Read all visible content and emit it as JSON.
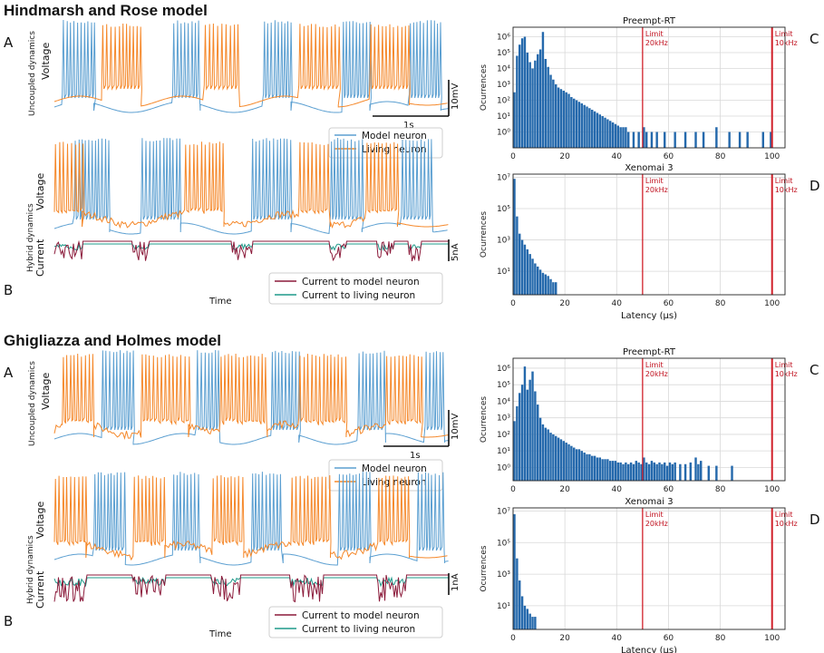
{
  "colors": {
    "model": "#5b9fd1",
    "living": "#f5882a",
    "current_model": "#8b1a3a",
    "current_living": "#1f9a8a",
    "bar": "#2569ac",
    "limit": "#d0202a",
    "grid": "#d8d8d8"
  },
  "top": {
    "title": "Hindmarsh and Rose model",
    "letters": [
      "A",
      "B"
    ],
    "uncoupled_label": "Uncoupled dynamics",
    "hybrid_label": "Hybrid dynamics",
    "voltage_label": "Voltage",
    "current_label": "Current",
    "time_label": "Time",
    "scale_v": "10mV",
    "scale_t": "1s",
    "scale_i": "5nA",
    "legend_voltage": [
      "Model neuron",
      "Living neuron"
    ],
    "legend_current": [
      "Current to model neuron",
      "Current to living neuron"
    ]
  },
  "bottom": {
    "title": "Ghigliazza and Holmes model",
    "letters": [
      "A",
      "B"
    ],
    "uncoupled_label": "Uncoupled dynamics",
    "hybrid_label": "Hybrid dynamics",
    "voltage_label": "Voltage",
    "current_label": "Current",
    "time_label": "Time",
    "scale_v": "10mV",
    "scale_t": "1s",
    "scale_i": "1nA",
    "legend_voltage": [
      "Model neuron",
      "Living neuron"
    ],
    "legend_current": [
      "Current to model neuron",
      "Current to living neuron"
    ]
  },
  "chart_data": [
    {
      "type": "bar",
      "panel": "top-C",
      "title": "Preempt-RT",
      "panel_letter": "C",
      "ylabel": "Ocurrences",
      "xlabel": "",
      "yscale": "log",
      "xlim": [
        0,
        105
      ],
      "ylim_exp": [
        -1,
        6.6
      ],
      "xticks": [
        "0",
        "20",
        "40",
        "60",
        "80",
        "100"
      ],
      "yticks": [
        "10⁰",
        "10¹",
        "10²",
        "10³",
        "10⁴",
        "10⁵",
        "10⁶"
      ],
      "limits": [
        {
          "x": 50,
          "label": [
            "Limit",
            "20kHz"
          ]
        },
        {
          "x": 100,
          "label": [
            "Limit",
            "10kHz"
          ]
        }
      ],
      "x": [
        0,
        1,
        2,
        3,
        4,
        5,
        6,
        7,
        8,
        9,
        10,
        11,
        12,
        13,
        14,
        15,
        16,
        17,
        18,
        19,
        20,
        21,
        22,
        23,
        24,
        25,
        26,
        27,
        28,
        29,
        30,
        31,
        32,
        33,
        34,
        35,
        36,
        37,
        38,
        39,
        40,
        41,
        42,
        43,
        44,
        46,
        48,
        50,
        51,
        53,
        55,
        58,
        62,
        66,
        70,
        73,
        78,
        83,
        87,
        90,
        96,
        99
      ],
      "log10_values": [
        2.5,
        4.8,
        5.5,
        5.9,
        6.0,
        5.0,
        4.4,
        4.0,
        4.5,
        4.9,
        5.2,
        6.3,
        4.6,
        4.1,
        3.6,
        3.3,
        3.0,
        2.8,
        2.7,
        2.6,
        2.5,
        2.4,
        2.2,
        2.1,
        2.0,
        1.9,
        1.8,
        1.7,
        1.6,
        1.5,
        1.4,
        1.3,
        1.2,
        1.1,
        1.0,
        0.9,
        0.8,
        0.7,
        0.6,
        0.5,
        0.4,
        0.3,
        0.3,
        0.3,
        0,
        0,
        0,
        0.3,
        0,
        0,
        0,
        0,
        0,
        0,
        0,
        0,
        0.3,
        0,
        0,
        0,
        0,
        0
      ]
    },
    {
      "type": "bar",
      "panel": "top-D",
      "title": "Xenomai 3",
      "panel_letter": "D",
      "ylabel": "Ocurrences",
      "xlabel": "Latency (µs)",
      "yscale": "log",
      "xlim": [
        0,
        105
      ],
      "ylim_exp": [
        -0.5,
        7.2
      ],
      "xticks": [
        "0",
        "20",
        "40",
        "60",
        "80",
        "100"
      ],
      "yticks": [
        "10¹",
        "10³",
        "10⁵",
        "10⁷"
      ],
      "limits": [
        {
          "x": 50,
          "label": [
            "Limit",
            "20kHz"
          ]
        },
        {
          "x": 100,
          "label": [
            "Limit",
            "10kHz"
          ]
        }
      ],
      "x": [
        0,
        1,
        2,
        3,
        4,
        5,
        6,
        7,
        8,
        9,
        10,
        11,
        12,
        13,
        14,
        15,
        16
      ],
      "log10_values": [
        6.9,
        4.5,
        3.4,
        3.0,
        2.7,
        2.4,
        2.1,
        1.8,
        1.5,
        1.3,
        1.1,
        0.9,
        0.8,
        0.7,
        0.5,
        0.3,
        0.3
      ]
    },
    {
      "type": "bar",
      "panel": "bottom-C",
      "title": "Preempt-RT",
      "panel_letter": "C",
      "ylabel": "Ocurrences",
      "xlabel": "",
      "yscale": "log",
      "xlim": [
        0,
        105
      ],
      "ylim_exp": [
        -0.8,
        6.6
      ],
      "xticks": [
        "0",
        "20",
        "40",
        "60",
        "80",
        "100"
      ],
      "yticks": [
        "10⁰",
        "10¹",
        "10²",
        "10³",
        "10⁴",
        "10⁵",
        "10⁶"
      ],
      "limits": [
        {
          "x": 50,
          "label": [
            "Limit",
            "20kHz"
          ]
        },
        {
          "x": 100,
          "label": [
            "Limit",
            "10kHz"
          ]
        }
      ],
      "x": [
        0,
        1,
        2,
        3,
        4,
        5,
        6,
        7,
        8,
        9,
        10,
        11,
        12,
        13,
        14,
        15,
        16,
        17,
        18,
        19,
        20,
        21,
        22,
        23,
        24,
        25,
        26,
        27,
        28,
        29,
        30,
        31,
        32,
        33,
        34,
        35,
        36,
        37,
        38,
        39,
        40,
        41,
        42,
        43,
        44,
        45,
        46,
        47,
        48,
        49,
        50,
        51,
        52,
        53,
        54,
        55,
        56,
        57,
        58,
        59,
        60,
        61,
        62,
        64,
        66,
        68,
        70,
        71,
        72,
        75,
        78,
        84
      ],
      "log10_values": [
        2.8,
        3.7,
        4.5,
        5.0,
        6.1,
        4.7,
        5.3,
        5.8,
        4.6,
        3.8,
        3.0,
        2.6,
        2.4,
        2.3,
        2.1,
        2.0,
        1.9,
        1.8,
        1.7,
        1.6,
        1.5,
        1.4,
        1.3,
        1.2,
        1.1,
        1.1,
        1.0,
        0.9,
        0.8,
        0.8,
        0.7,
        0.7,
        0.6,
        0.6,
        0.5,
        0.5,
        0.5,
        0.4,
        0.4,
        0.4,
        0.3,
        0.3,
        0.2,
        0.3,
        0.2,
        0.3,
        0.2,
        0.4,
        0.3,
        0.2,
        0.6,
        0.3,
        0.2,
        0.4,
        0.3,
        0.2,
        0.3,
        0.2,
        0.3,
        0.1,
        0.3,
        0.2,
        0.3,
        0.2,
        0.2,
        0.3,
        0.6,
        0.2,
        0.4,
        0.1,
        0.1,
        0.1
      ]
    },
    {
      "type": "bar",
      "panel": "bottom-D",
      "title": "Xenomai 3",
      "panel_letter": "D",
      "ylabel": "Ocurrences",
      "xlabel": "Latency (µs)",
      "yscale": "log",
      "xlim": [
        0,
        105
      ],
      "ylim_exp": [
        -0.5,
        7.2
      ],
      "xticks": [
        "0",
        "20",
        "40",
        "60",
        "80",
        "100"
      ],
      "yticks": [
        "10¹",
        "10³",
        "10⁵",
        "10⁷"
      ],
      "limits": [
        {
          "x": 50,
          "label": [
            "Limit",
            "20kHz"
          ]
        },
        {
          "x": 100,
          "label": [
            "Limit",
            "10kHz"
          ]
        }
      ],
      "x": [
        0,
        1,
        2,
        3,
        4,
        5,
        6,
        7,
        8
      ],
      "log10_values": [
        6.8,
        4.0,
        2.6,
        1.6,
        1.0,
        0.8,
        0.5,
        0.3,
        0.3
      ]
    }
  ]
}
